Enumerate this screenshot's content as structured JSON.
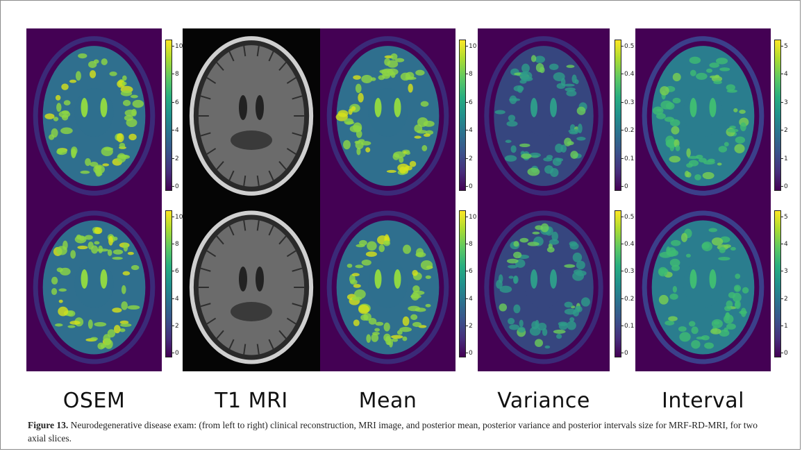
{
  "figure": {
    "panels": [
      {
        "id": "osem",
        "label": "OSEM",
        "colorbar_ticks": [
          "10",
          "8",
          "6",
          "4",
          "2",
          "0"
        ]
      },
      {
        "id": "t1mri",
        "label": "T1 MRI",
        "colorbar_ticks": []
      },
      {
        "id": "mean",
        "label": "Mean",
        "colorbar_ticks": [
          "10",
          "8",
          "6",
          "4",
          "2",
          "0"
        ]
      },
      {
        "id": "variance",
        "label": "Variance",
        "colorbar_ticks": [
          "0.5",
          "0.4",
          "0.3",
          "0.2",
          "0.1",
          "0"
        ]
      },
      {
        "id": "interval",
        "label": "Interval",
        "colorbar_ticks": [
          "5",
          "4",
          "3",
          "2",
          "1",
          "0"
        ]
      }
    ],
    "colormap": "viridis",
    "background_color": "#440154",
    "caption_label": "Figure 13.",
    "caption_text": " Neurodegenerative disease exam: (from left to right) clinical reconstruction, MRI image, and posterior mean, posterior variance and posterior intervals size for MRF-RD-MRI, for two axial slices."
  }
}
